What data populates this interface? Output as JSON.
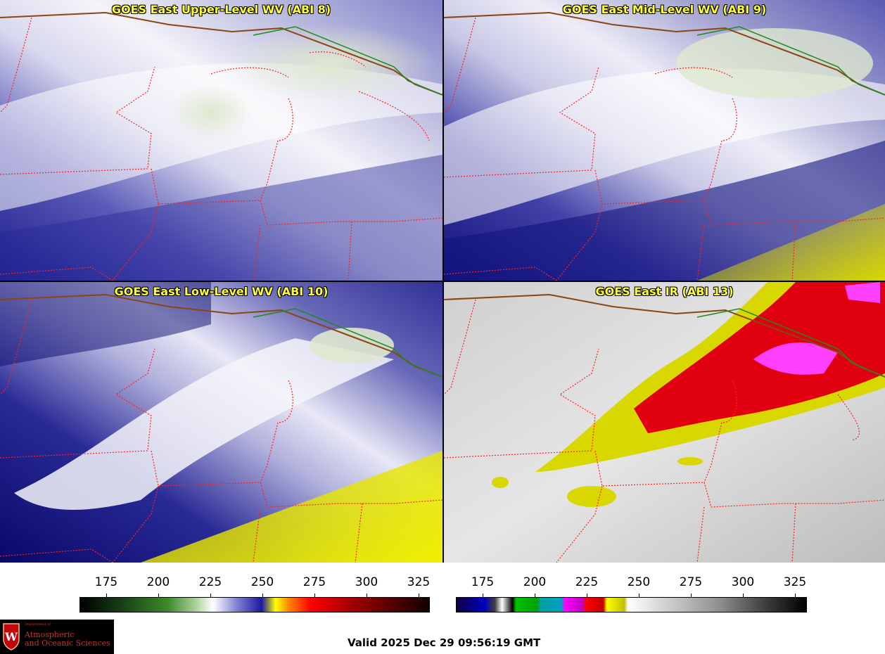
{
  "panels": [
    {
      "title": "GOES East Upper-Level WV (ABI 8)"
    },
    {
      "title": "GOES East Mid-Level WV (ABI 9)"
    },
    {
      "title": "GOES East Low-Level WV (ABI 10)"
    },
    {
      "title": "GOES East IR (ABI 13)"
    }
  ],
  "colorbars": [
    {
      "ticks": [
        "175",
        "200",
        "225",
        "250",
        "275",
        "300",
        "325"
      ]
    },
    {
      "ticks": [
        "175",
        "200",
        "225",
        "250",
        "275",
        "300",
        "325"
      ]
    }
  ],
  "logo": {
    "dept_line1": "Department of",
    "line1": "Atmospheric",
    "line2": "and Oceanic Sciences"
  },
  "valid_time": "Valid 2025 Dec 29 09:56:19 GMT"
}
